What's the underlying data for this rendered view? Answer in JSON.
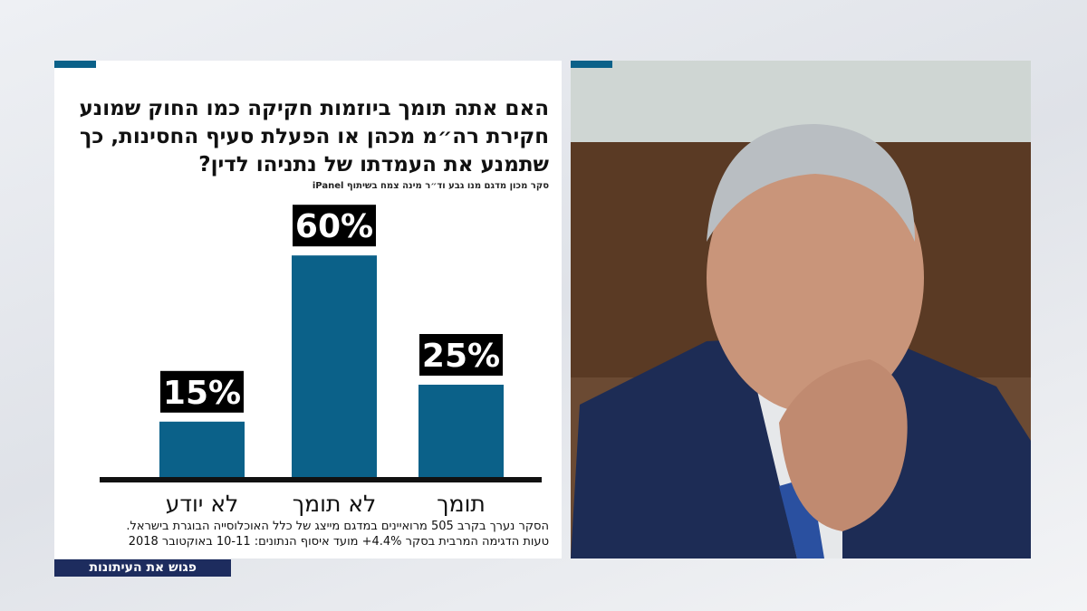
{
  "chart_data": {
    "type": "bar",
    "title": "האם אתה תומך ביוזמות חקיקה כמו החוק שמונע חקירת רה״מ מכהן או הפעלת סעיף החסינות, כך שתמנע את העמדתו של נתניהו לדין?",
    "source": "סקר מכון מדגם מנו גבע וד״ר מינה צמח בשיתוף iPanel",
    "categories": [
      "תומך",
      "לא תומך",
      "לא יודע"
    ],
    "values": [
      25,
      60,
      15
    ],
    "value_labels": [
      "25%",
      "60%",
      "15%"
    ],
    "color": "#0b6189",
    "footnotes": [
      "הסקר נערך בקרב 505 מרואיינים במדגם מייצג של כלל האוכלוסייה הבוגרת בישראל.",
      "טעות הדגימה המרבית בסקר 4.4%+ מועד איסוף הנתונים: 10-11 באוקטובר 2018"
    ]
  },
  "banner": "פגוש את העיתונות"
}
